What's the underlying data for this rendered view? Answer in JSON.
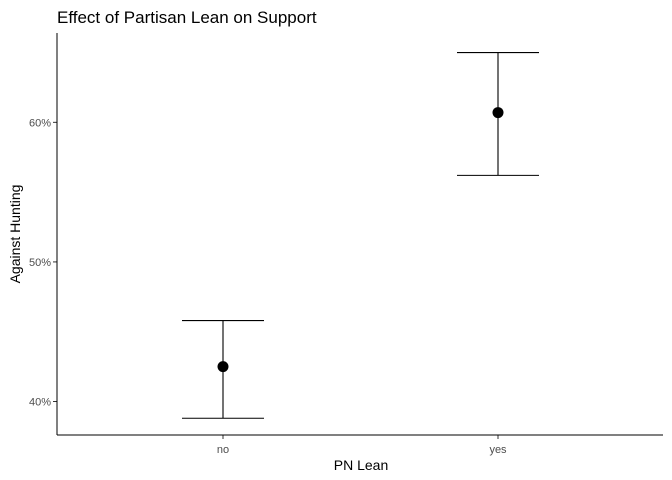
{
  "chart_data": {
    "type": "scatter",
    "title": "Effect of Partisan Lean on Support",
    "xlabel": "PN Lean",
    "ylabel": "Against Hunting",
    "categories": [
      "no",
      "yes"
    ],
    "values": [
      0.425,
      0.607
    ],
    "error_low": [
      0.388,
      0.562
    ],
    "error_high": [
      0.458,
      0.65
    ],
    "y_ticks": [
      0.4,
      0.5,
      0.6
    ],
    "y_tick_labels": [
      "40%",
      "50%",
      "60%"
    ],
    "ylim": [
      0.376,
      0.664
    ],
    "grid": false,
    "legend": "none",
    "colors": {
      "marks": "#000000",
      "axis": "#000000",
      "tick_text": "#4d4d4d"
    }
  }
}
